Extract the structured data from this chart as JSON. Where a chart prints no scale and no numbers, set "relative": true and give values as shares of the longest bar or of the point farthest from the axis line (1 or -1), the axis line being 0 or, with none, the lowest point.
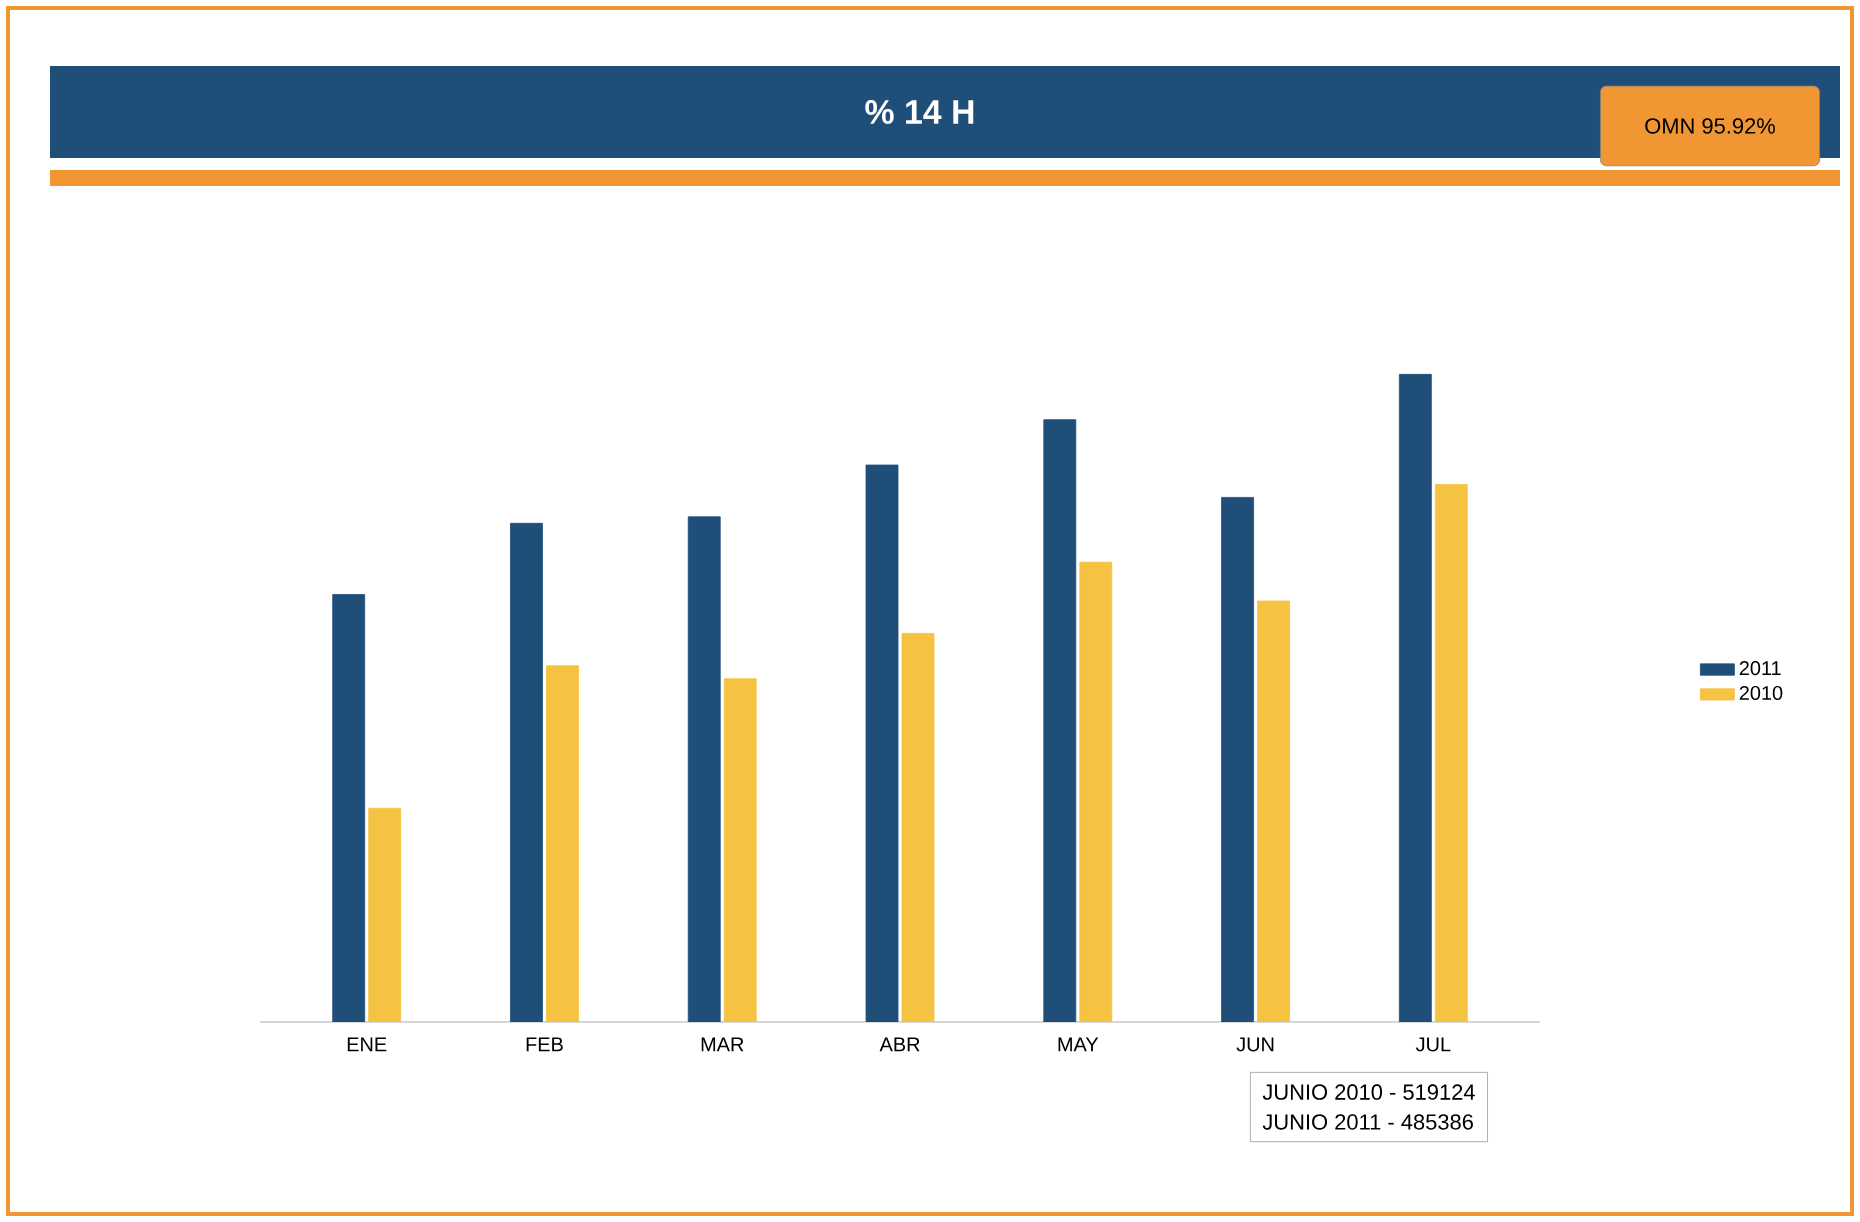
{
  "chart_data": {
    "type": "bar",
    "title": "% 14 H",
    "relative": true,
    "categories": [
      "ENE",
      "FEB",
      "MAR",
      "ABR",
      "MAY",
      "JUN",
      "JUL"
    ],
    "series": [
      {
        "name": "2011",
        "color": "#1f4e79",
        "values": [
          0.66,
          0.77,
          0.78,
          0.86,
          0.93,
          0.81,
          1
        ]
      },
      {
        "name": "2010",
        "color": "#f5c242",
        "values": [
          0.33,
          0.55,
          0.53,
          0.6,
          0.71,
          0.65,
          0.83
        ]
      }
    ],
    "legend": "right",
    "annotations": [
      "OMN 95.92%",
      "JUNIO 2010 - 519124",
      "JUNIO 2011 - 485386"
    ]
  }
}
